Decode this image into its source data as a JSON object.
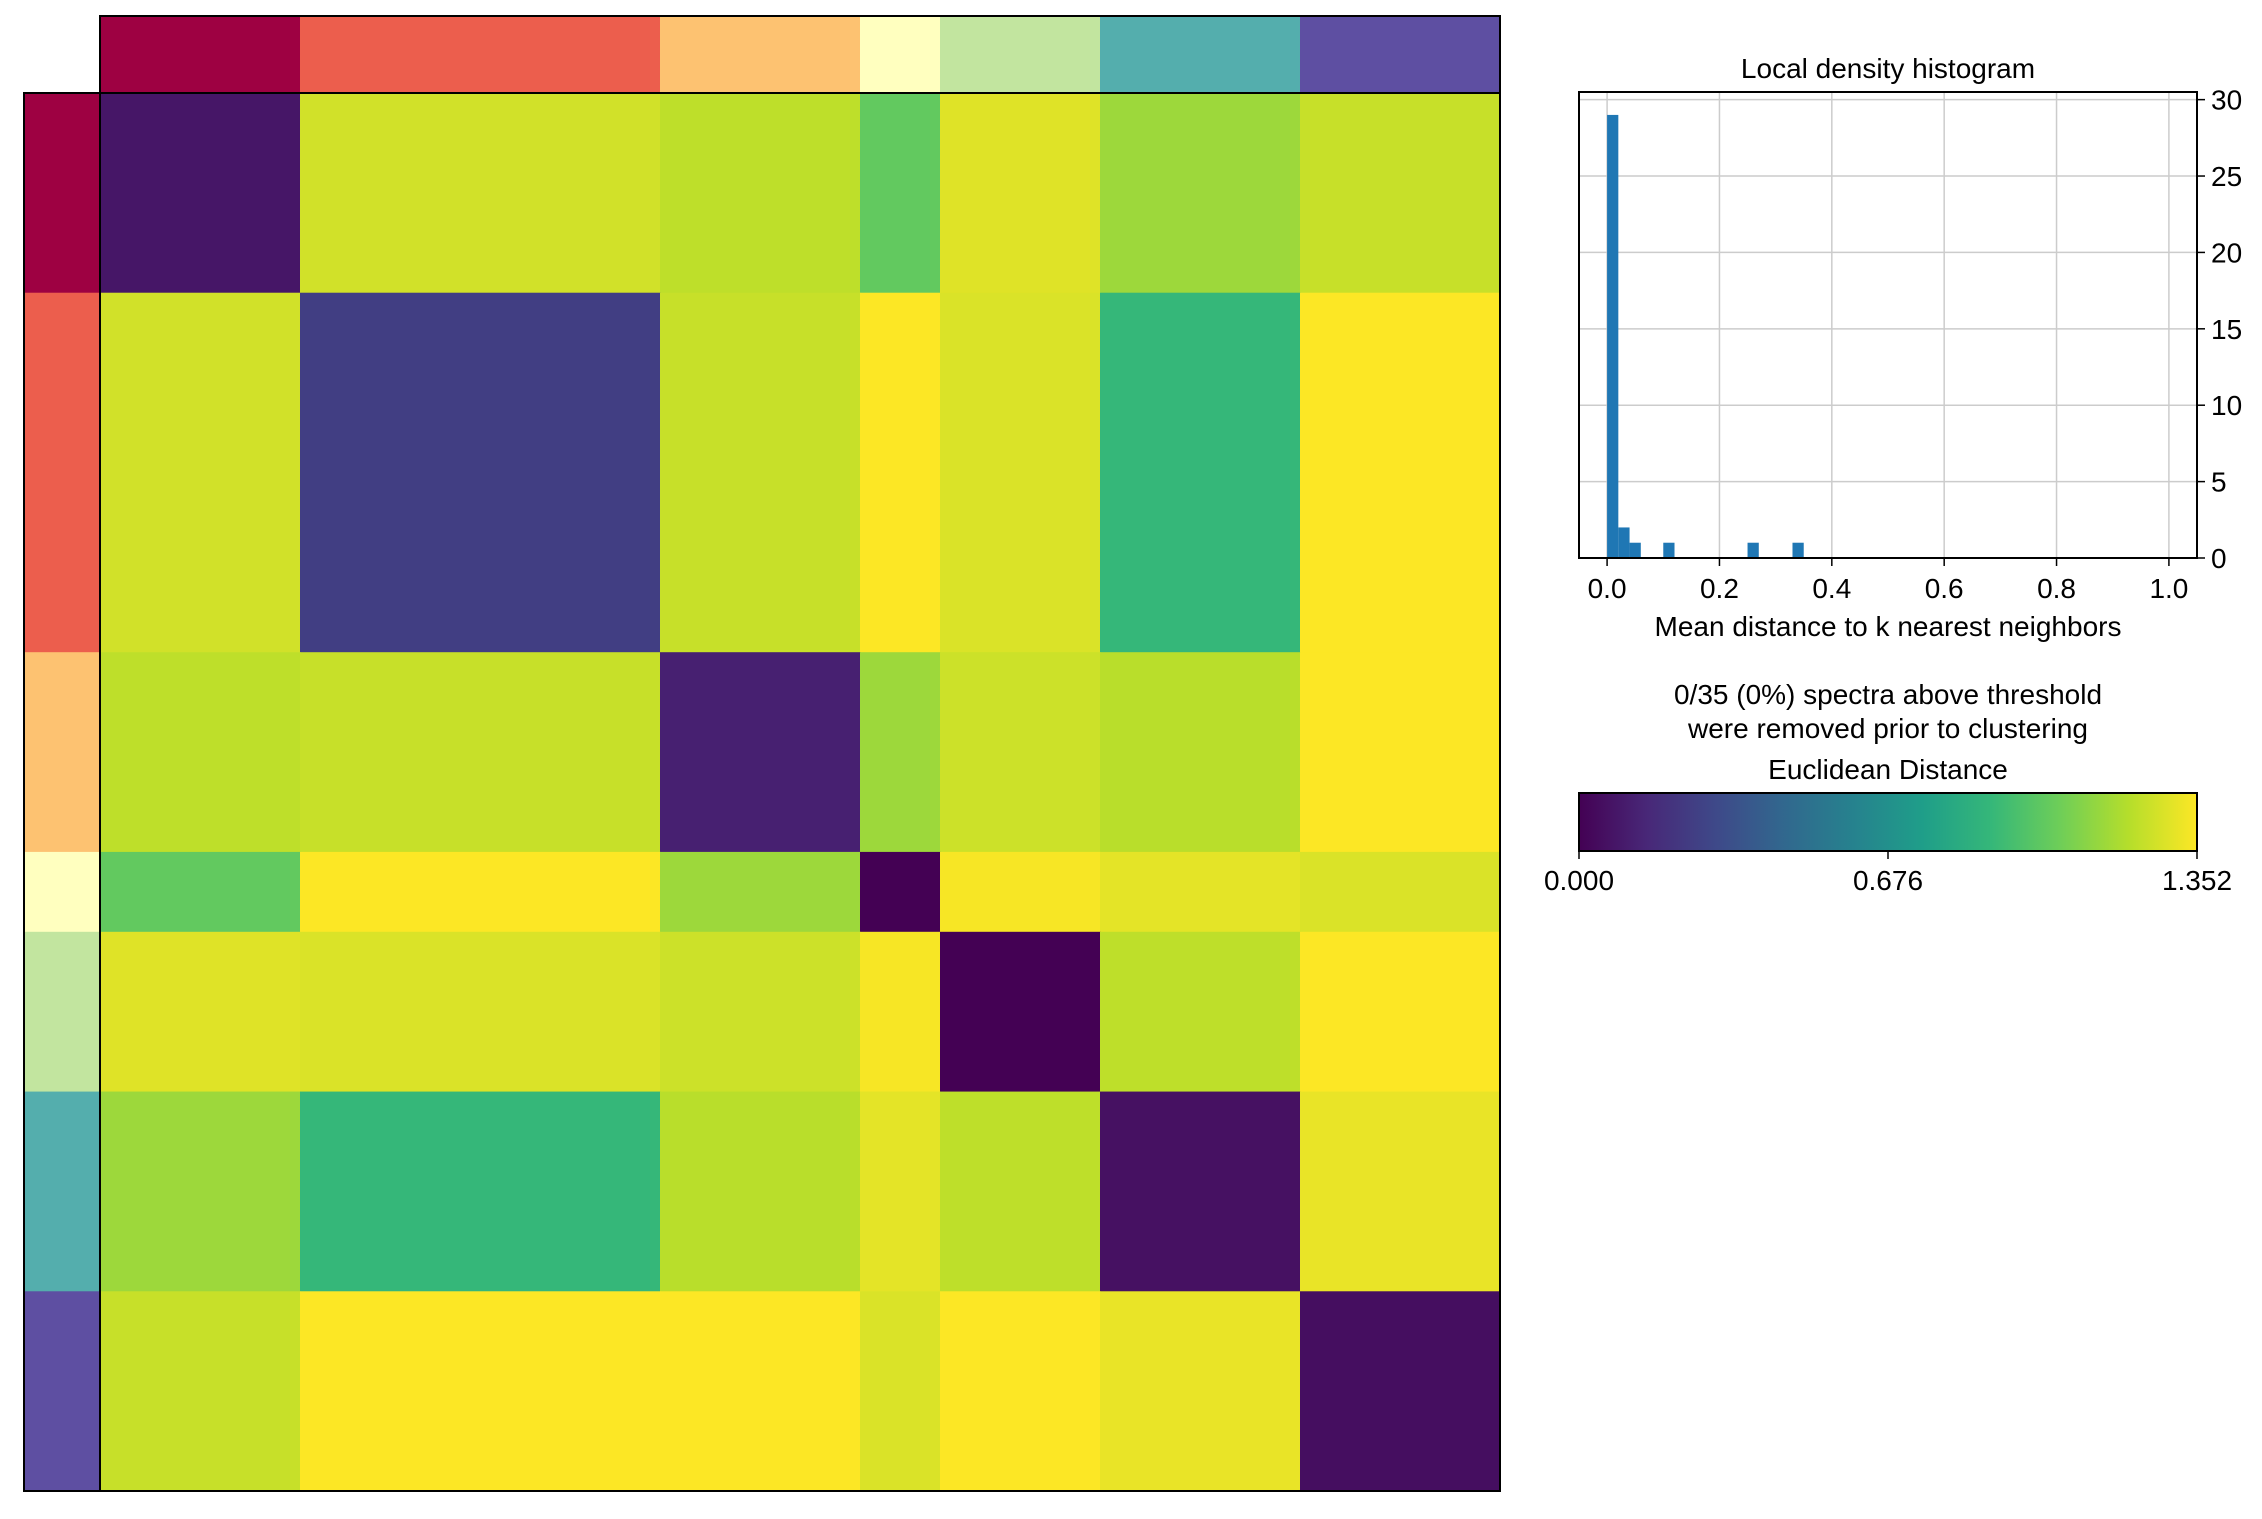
{
  "chart_data": [
    {
      "type": "heatmap",
      "title": "",
      "n_spectra": 35,
      "cluster_sizes": [
        5,
        9,
        5,
        2,
        4,
        5,
        5
      ],
      "cluster_colors": [
        "#9e0142",
        "#ec5e4d",
        "#fdc271",
        "#ffffbf",
        "#c2e59f",
        "#54aead",
        "#5e4fa2"
      ],
      "cluster_similarity": [
        [
          0.08,
          1.26,
          1.22,
          1.02,
          1.29,
          1.15,
          1.24
        ],
        [
          1.26,
          0.25,
          1.24,
          1.35,
          1.28,
          0.9,
          1.35
        ],
        [
          1.22,
          1.24,
          0.12,
          1.15,
          1.25,
          1.21,
          1.35
        ],
        [
          1.02,
          1.35,
          1.15,
          0.0,
          1.34,
          1.3,
          1.28
        ],
        [
          1.29,
          1.28,
          1.25,
          1.34,
          0.0,
          1.22,
          1.35
        ],
        [
          1.15,
          0.9,
          1.21,
          1.3,
          1.22,
          0.06,
          1.31
        ],
        [
          1.24,
          1.35,
          1.35,
          1.28,
          1.35,
          1.31,
          0.05
        ]
      ]
    },
    {
      "type": "bar",
      "title": "Local density histogram",
      "xlabel": "Mean distance to k nearest neighbors",
      "ylabel": "",
      "xlim": [
        -0.05,
        1.05
      ],
      "ylim": [
        0,
        30.5
      ],
      "x_ticks": [
        "0.0",
        "0.2",
        "0.4",
        "0.6",
        "0.8",
        "1.0"
      ],
      "y_ticks": [
        "0",
        "5",
        "10",
        "15",
        "20",
        "25",
        "30"
      ],
      "bin_width": 0.02,
      "bins": [
        {
          "x": 0.0,
          "count": 29
        },
        {
          "x": 0.02,
          "count": 2
        },
        {
          "x": 0.04,
          "count": 1
        },
        {
          "x": 0.1,
          "count": 1
        },
        {
          "x": 0.25,
          "count": 1
        },
        {
          "x": 0.33,
          "count": 1
        }
      ],
      "bar_color": "#1f77b4",
      "grid": true,
      "y_axis_side": "right"
    },
    {
      "type": "colorbar",
      "note_line1": "0/35 (0%) spectra above threshold",
      "note_line2": "were removed prior to clustering",
      "label": "Euclidean Distance",
      "range": [
        0,
        1.352
      ],
      "ticks": [
        "0.000",
        "0.676",
        "1.352"
      ],
      "colormap": "viridis"
    }
  ]
}
